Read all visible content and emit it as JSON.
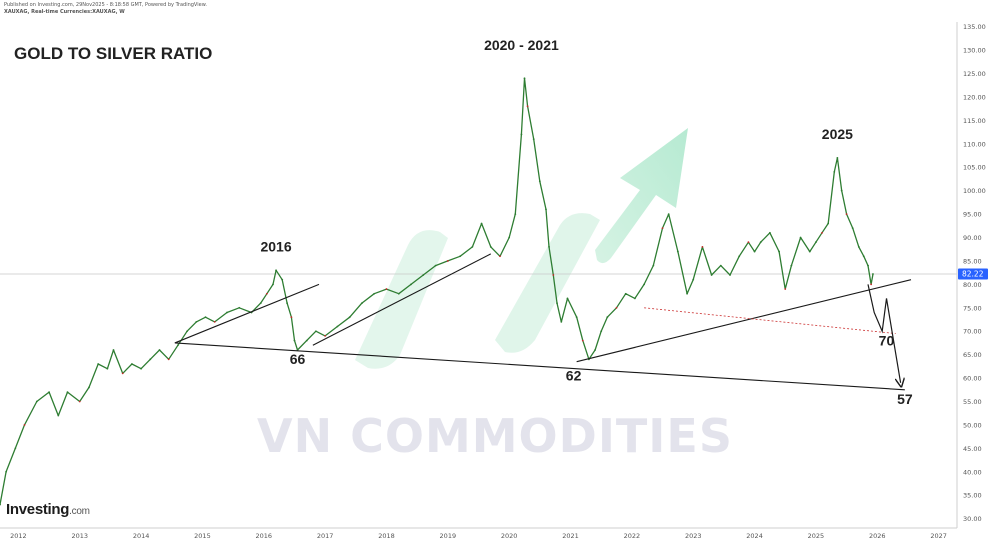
{
  "header": {
    "published": "Published on Investing.com, 29Nov2025 - 8:18:58 GMT, Powered by TradingView.",
    "symbol": "XAUXAG, Real-time Currencies:XAUXAG, W"
  },
  "branding": {
    "logo_text": "Investing",
    "logo_suffix": ".com",
    "watermark": "VN COMMODITIES"
  },
  "chart_data": {
    "type": "line",
    "title": "GOLD TO SILVER RATIO",
    "x_axis": {
      "ticks": [
        "2012",
        "2013",
        "2014",
        "2015",
        "2016",
        "2017",
        "2018",
        "2019",
        "2020",
        "2021",
        "2022",
        "2023",
        "2024",
        "2025",
        "2026",
        "2027"
      ],
      "range": [
        2011.7,
        2027.3
      ]
    },
    "y_axis": {
      "ticks": [
        "135.00",
        "130.00",
        "125.00",
        "120.00",
        "115.00",
        "110.00",
        "105.00",
        "100.00",
        "95.00",
        "90.00",
        "85.00",
        "80.00",
        "75.00",
        "70.00",
        "65.00",
        "60.00",
        "55.00",
        "50.00",
        "45.00",
        "40.00",
        "35.00",
        "30.00"
      ],
      "range": [
        28,
        136
      ],
      "position": "right"
    },
    "last_price": {
      "value": 82.22,
      "label": "82.22",
      "color": "#2962ff"
    },
    "series": [
      {
        "color": "#2e7d32",
        "points": [
          [
            2011.7,
            33
          ],
          [
            2011.8,
            40
          ],
          [
            2011.95,
            45
          ],
          [
            2012.1,
            50
          ],
          [
            2012.3,
            55
          ],
          [
            2012.5,
            57
          ],
          [
            2012.65,
            52
          ],
          [
            2012.8,
            57
          ],
          [
            2013.0,
            55
          ],
          [
            2013.15,
            58
          ],
          [
            2013.3,
            63
          ],
          [
            2013.45,
            62
          ],
          [
            2013.55,
            66
          ],
          [
            2013.7,
            61
          ],
          [
            2013.85,
            63
          ],
          [
            2014.0,
            62
          ],
          [
            2014.15,
            64
          ],
          [
            2014.3,
            66
          ],
          [
            2014.45,
            64
          ],
          [
            2014.6,
            67
          ],
          [
            2014.75,
            70
          ],
          [
            2014.9,
            72
          ],
          [
            2015.05,
            73
          ],
          [
            2015.2,
            72
          ],
          [
            2015.4,
            74
          ],
          [
            2015.6,
            75
          ],
          [
            2015.8,
            74
          ],
          [
            2015.95,
            76
          ],
          [
            2016.05,
            78
          ],
          [
            2016.15,
            80
          ],
          [
            2016.2,
            83
          ],
          [
            2016.3,
            81
          ],
          [
            2016.38,
            76
          ],
          [
            2016.45,
            73
          ],
          [
            2016.5,
            68
          ],
          [
            2016.55,
            66
          ],
          [
            2016.7,
            68
          ],
          [
            2016.85,
            70
          ],
          [
            2017.0,
            69
          ],
          [
            2017.2,
            71
          ],
          [
            2017.4,
            73
          ],
          [
            2017.6,
            76
          ],
          [
            2017.8,
            78
          ],
          [
            2018.0,
            79
          ],
          [
            2018.2,
            78
          ],
          [
            2018.4,
            80
          ],
          [
            2018.6,
            82
          ],
          [
            2018.8,
            84
          ],
          [
            2019.0,
            85
          ],
          [
            2019.2,
            86
          ],
          [
            2019.4,
            88
          ],
          [
            2019.55,
            93
          ],
          [
            2019.7,
            88
          ],
          [
            2019.85,
            86
          ],
          [
            2020.0,
            90
          ],
          [
            2020.1,
            95
          ],
          [
            2020.2,
            112
          ],
          [
            2020.25,
            124
          ],
          [
            2020.3,
            118
          ],
          [
            2020.4,
            111
          ],
          [
            2020.5,
            102
          ],
          [
            2020.6,
            96
          ],
          [
            2020.65,
            88
          ],
          [
            2020.72,
            82
          ],
          [
            2020.78,
            76
          ],
          [
            2020.85,
            72
          ],
          [
            2020.95,
            77
          ],
          [
            2021.1,
            73
          ],
          [
            2021.2,
            68
          ],
          [
            2021.3,
            64
          ],
          [
            2021.4,
            66
          ],
          [
            2021.5,
            70
          ],
          [
            2021.6,
            73
          ],
          [
            2021.75,
            75
          ],
          [
            2021.9,
            78
          ],
          [
            2022.05,
            77
          ],
          [
            2022.2,
            80
          ],
          [
            2022.35,
            84
          ],
          [
            2022.5,
            92
          ],
          [
            2022.6,
            95
          ],
          [
            2022.75,
            87
          ],
          [
            2022.9,
            78
          ],
          [
            2023.0,
            81
          ],
          [
            2023.15,
            88
          ],
          [
            2023.3,
            82
          ],
          [
            2023.45,
            84
          ],
          [
            2023.6,
            82
          ],
          [
            2023.75,
            86
          ],
          [
            2023.9,
            89
          ],
          [
            2024.0,
            87
          ],
          [
            2024.1,
            89
          ],
          [
            2024.25,
            91
          ],
          [
            2024.4,
            87
          ],
          [
            2024.5,
            79
          ],
          [
            2024.6,
            84
          ],
          [
            2024.75,
            90
          ],
          [
            2024.9,
            87
          ],
          [
            2025.0,
            89
          ],
          [
            2025.1,
            91
          ],
          [
            2025.2,
            93
          ],
          [
            2025.3,
            104
          ],
          [
            2025.35,
            107
          ],
          [
            2025.42,
            100
          ],
          [
            2025.5,
            95
          ],
          [
            2025.6,
            92
          ],
          [
            2025.7,
            88
          ],
          [
            2025.78,
            86
          ],
          [
            2025.85,
            84
          ],
          [
            2025.9,
            80
          ],
          [
            2025.93,
            82.22
          ]
        ]
      }
    ],
    "trendlines": [
      {
        "color": "#1a1a1a",
        "points": [
          [
            2014.55,
            67.5
          ],
          [
            2026.45,
            57.5
          ]
        ]
      },
      {
        "color": "#1a1a1a",
        "points": [
          [
            2021.1,
            63.5
          ],
          [
            2026.55,
            81
          ]
        ]
      },
      {
        "color": "#1a1a1a",
        "points": [
          [
            2014.55,
            67.5
          ],
          [
            2016.9,
            80
          ]
        ]
      },
      {
        "color": "#1a1a1a",
        "points": [
          [
            2016.8,
            67
          ],
          [
            2019.7,
            86.5
          ]
        ]
      },
      {
        "color": "#cc3333",
        "dashed": true,
        "points": [
          [
            2022.2,
            75
          ],
          [
            2026.3,
            69.5
          ]
        ]
      }
    ],
    "projection": {
      "color": "#1a1a1a",
      "points": [
        [
          2025.85,
          80
        ],
        [
          2025.95,
          74
        ],
        [
          2026.08,
          70
        ],
        [
          2026.15,
          77
        ],
        [
          2026.38,
          59
        ]
      ],
      "arrow_tip": [
        2026.4,
        58
      ]
    },
    "annotations": [
      {
        "text": "2016",
        "x": 2016.2,
        "y": 87
      },
      {
        "text": "2020 - 2021",
        "x": 2020.2,
        "y": 130
      },
      {
        "text": "2025",
        "x": 2025.35,
        "y": 111
      },
      {
        "text": "66",
        "x": 2016.55,
        "y": 63
      },
      {
        "text": "62",
        "x": 2021.05,
        "y": 59.5
      },
      {
        "text": "70",
        "x": 2026.15,
        "y": 67
      },
      {
        "text": "57",
        "x": 2026.45,
        "y": 54.5
      }
    ],
    "grid": false,
    "legend": "none"
  }
}
